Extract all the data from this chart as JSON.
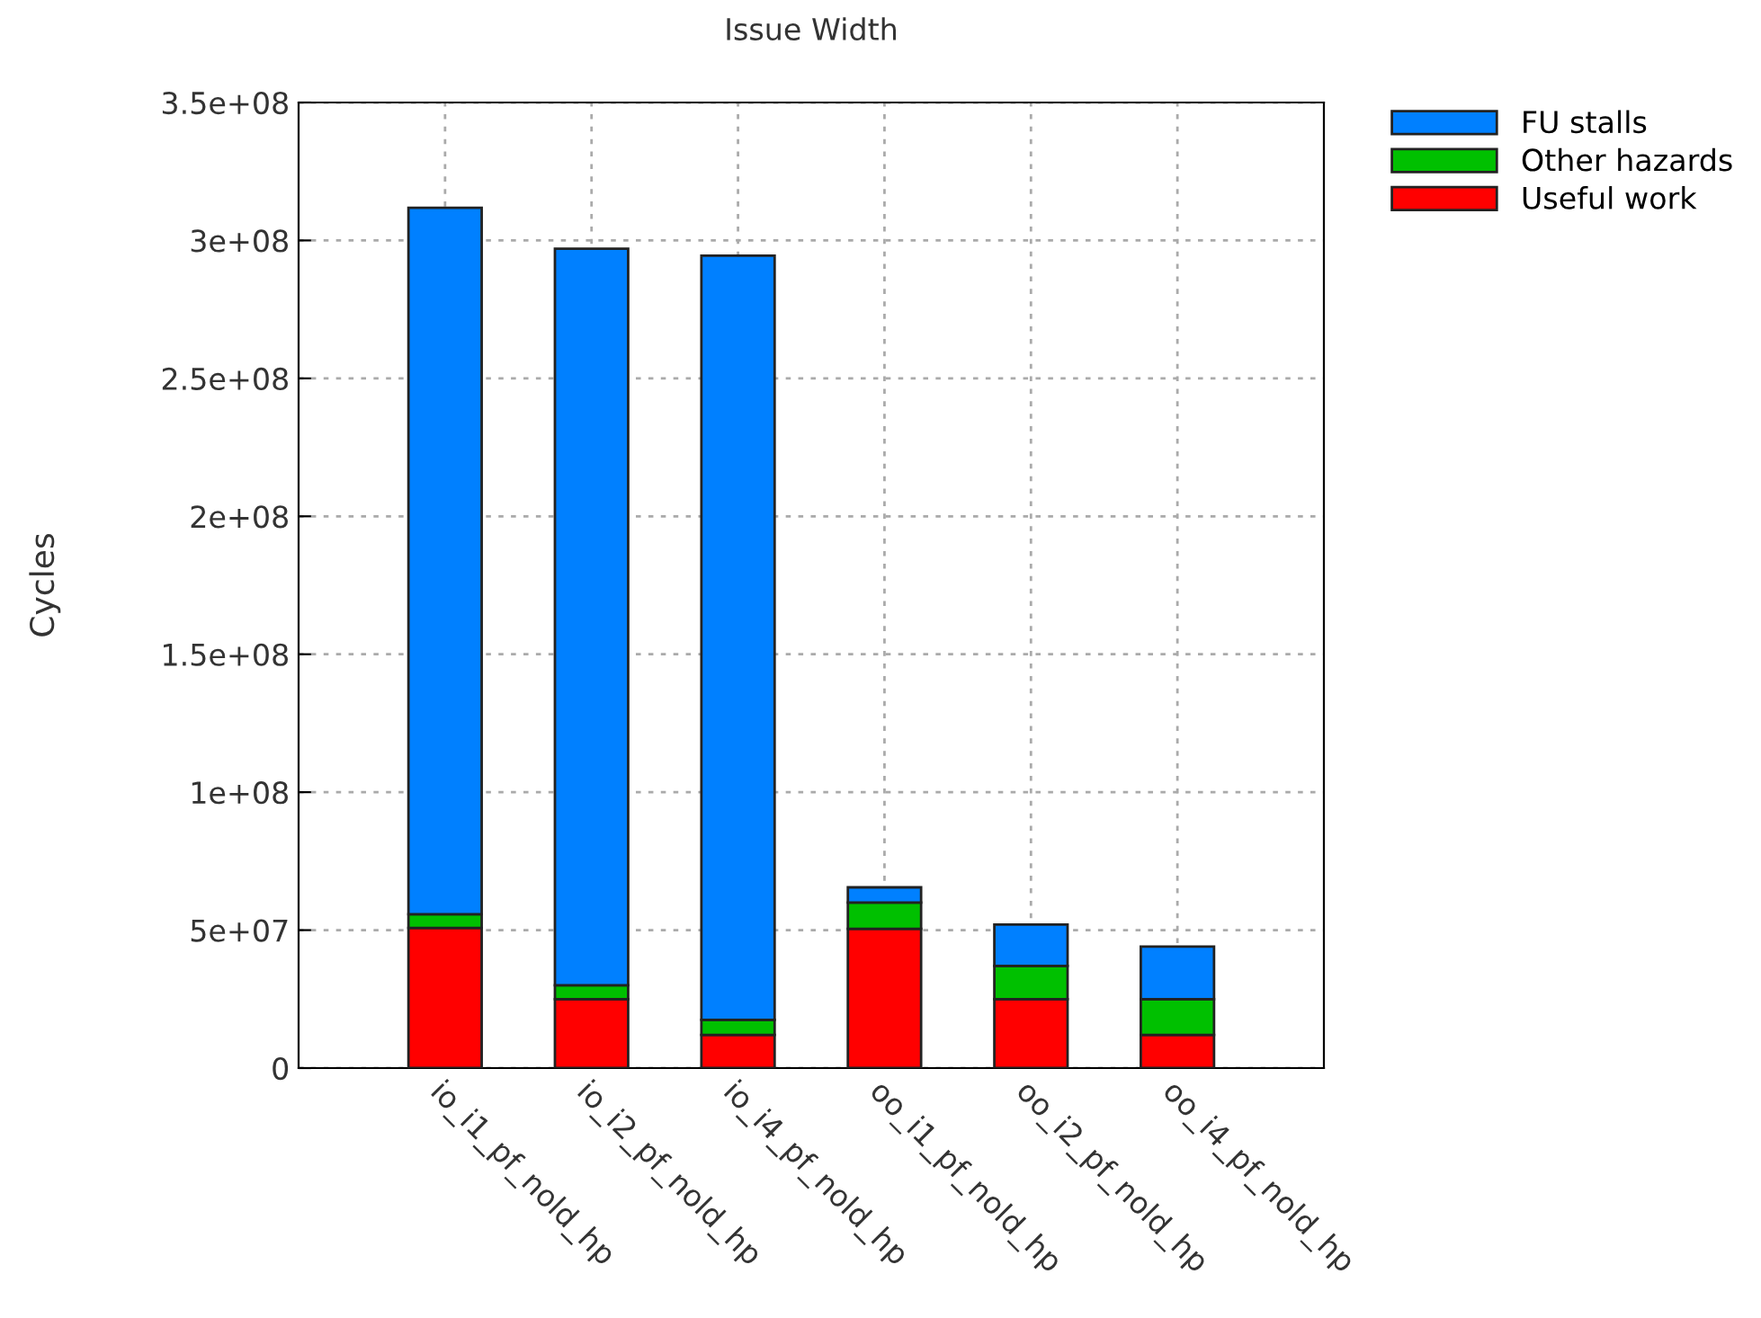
{
  "chart_data": {
    "type": "bar",
    "stacked": true,
    "title": "Issue Width",
    "ylabel": "Cycles",
    "categories": [
      "io_i1_pf_nold_hp",
      "io_i2_pf_nold_hp",
      "io_i4_pf_nold_hp",
      "oo_i1_pf_nold_hp",
      "oo_i2_pf_nold_hp",
      "oo_i4_pf_nold_hp"
    ],
    "series": [
      {
        "name": "Useful work",
        "color": "#ff0000",
        "values": [
          50800000,
          25000000,
          12000000,
          50500000,
          25000000,
          12000000
        ]
      },
      {
        "name": "Other hazards",
        "color": "#00c000",
        "values": [
          5000000,
          5000000,
          5500000,
          9500000,
          12000000,
          13000000
        ]
      },
      {
        "name": "FU stalls",
        "color": "#0080ff",
        "values": [
          256000000,
          267000000,
          277000000,
          5500000,
          15000000,
          19000000
        ]
      }
    ],
    "ylim": [
      0,
      350000000
    ],
    "yticks": [
      {
        "value": 0,
        "label": "0"
      },
      {
        "value": 50000000,
        "label": "5e+07"
      },
      {
        "value": 100000000,
        "label": "1e+08"
      },
      {
        "value": 150000000,
        "label": "1.5e+08"
      },
      {
        "value": 200000000,
        "label": "2e+08"
      },
      {
        "value": 250000000,
        "label": "2.5e+08"
      },
      {
        "value": 300000000,
        "label": "3e+08"
      },
      {
        "value": 350000000,
        "label": "3.5e+08"
      }
    ],
    "grid": true,
    "legend": "top right"
  }
}
